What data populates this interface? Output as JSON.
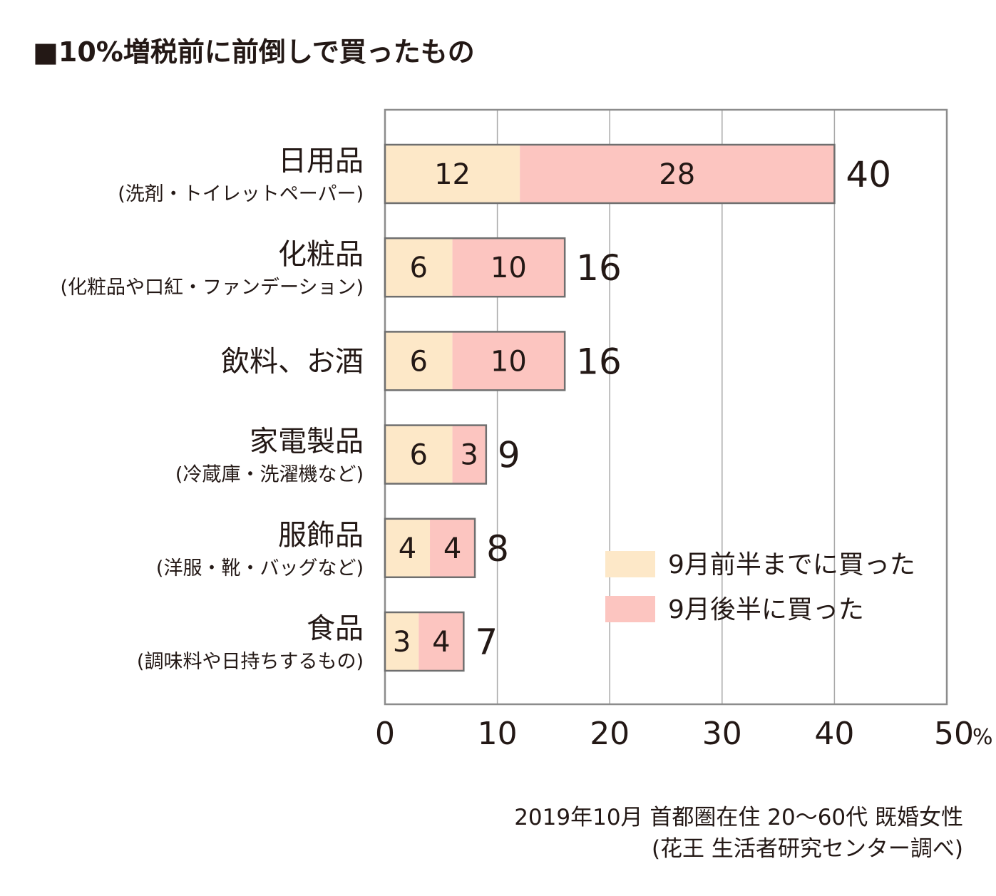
{
  "title": "■10%増税前に前倒しで買ったもの",
  "chart_data": {
    "type": "bar",
    "orientation": "horizontal",
    "stacked": true,
    "categories": [
      {
        "label": "日用品",
        "sublabel": "(洗剤・トイレットペーパー)"
      },
      {
        "label": "化粧品",
        "sublabel": "(化粧品や口紅・ファンデーション)"
      },
      {
        "label": "飲料、お酒",
        "sublabel": ""
      },
      {
        "label": "家電製品",
        "sublabel": "(冷蔵庫・洗濯機など)"
      },
      {
        "label": "服飾品",
        "sublabel": "(洋服・靴・バッグなど)"
      },
      {
        "label": "食品",
        "sublabel": "(調味料や日持ちするもの)"
      }
    ],
    "series": [
      {
        "name": "9月前半までに買った",
        "color": "#fde8c8",
        "values": [
          12,
          6,
          6,
          6,
          4,
          3
        ]
      },
      {
        "name": "9月後半に買った",
        "color": "#fcc5c0",
        "values": [
          28,
          10,
          10,
          3,
          4,
          4
        ]
      }
    ],
    "totals": [
      40,
      16,
      16,
      9,
      8,
      7
    ],
    "xlim": [
      0,
      50
    ],
    "xticks": [
      "0",
      "10",
      "20",
      "30",
      "40",
      "50"
    ],
    "x_unit": "%",
    "grid": true,
    "legend_position": "lower-right"
  },
  "note": {
    "line1": "2019年10月 首都圏在住 20〜60代 既婚女性",
    "line2": "(花王 生活者研究センター調べ)"
  }
}
